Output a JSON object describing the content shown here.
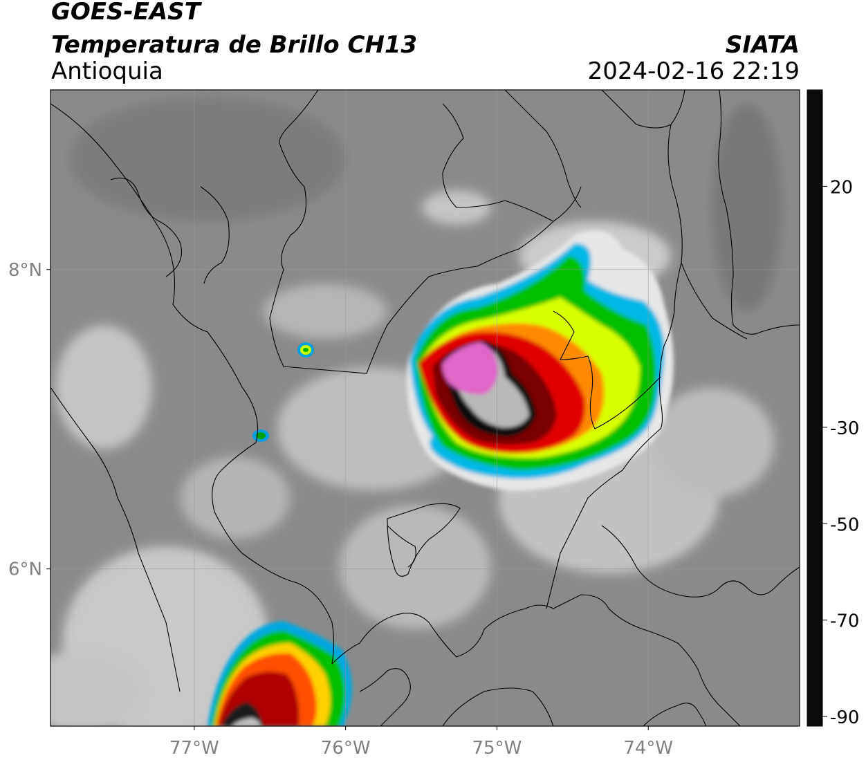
{
  "header": {
    "satellite": "GOES-EAST",
    "product": "Temperatura de Brillo CH13",
    "region": "Antioquia",
    "organization": "SIATA",
    "timestamp": "2024-02-16 22:19"
  },
  "map": {
    "lon_ticks": [
      {
        "value": -77,
        "label": "77°W"
      },
      {
        "value": -76,
        "label": "76°W"
      },
      {
        "value": -75,
        "label": "75°W"
      },
      {
        "value": -74,
        "label": "74°W"
      }
    ],
    "lat_ticks": [
      {
        "value": 8,
        "label": "8°N"
      },
      {
        "value": 6,
        "label": "6°N"
      }
    ],
    "extent": {
      "lon_min": -77.95,
      "lon_max": -73.0,
      "lat_min": 4.95,
      "lat_max": 9.2
    },
    "colors": {
      "land": "#8a8a8a",
      "cloud_warm": "#d8d8d8",
      "boundary": "#000000"
    }
  },
  "colorbar": {
    "ticks": [
      {
        "value": 20,
        "label": "20"
      },
      {
        "value": -30,
        "label": "-30"
      },
      {
        "value": -50,
        "label": "-50"
      },
      {
        "value": -70,
        "label": "-70"
      },
      {
        "value": -90,
        "label": "-90"
      }
    ],
    "range": [
      -92,
      40
    ],
    "stops": [
      {
        "t": 40,
        "color": "#0b0b0b"
      },
      {
        "t": 20,
        "color": "#6e6e6e"
      },
      {
        "t": 5,
        "color": "#bdbdbd"
      },
      {
        "t": -10,
        "color": "#f2f2f2"
      },
      {
        "t": -10,
        "color": "#00e6ff"
      },
      {
        "t": -20,
        "color": "#0070c0"
      },
      {
        "t": -28,
        "color": "#001f8a"
      },
      {
        "t": -33,
        "color": "#00803a"
      },
      {
        "t": -42,
        "color": "#00e000"
      },
      {
        "t": -48,
        "color": "#e8ff00"
      },
      {
        "t": -52,
        "color": "#ffb000"
      },
      {
        "t": -58,
        "color": "#ff3000"
      },
      {
        "t": -65,
        "color": "#c00000"
      },
      {
        "t": -70,
        "color": "#000000"
      },
      {
        "t": -77,
        "color": "#d8d8d8"
      },
      {
        "t": -80,
        "color": "#ff66cc"
      },
      {
        "t": -88,
        "color": "#8a1a8a"
      },
      {
        "t": -90,
        "color": "#ffffff"
      }
    ]
  }
}
